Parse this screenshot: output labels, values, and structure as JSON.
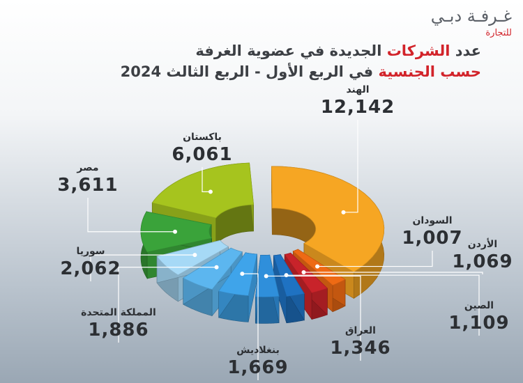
{
  "logo": {
    "main": "غـرفـة دبـي",
    "sub": "للتجارة"
  },
  "title": {
    "line1_pre": "عدد ",
    "line1_red": "الشركات",
    "line1_post": " الجديدة في عضوية الغرفة",
    "line2_red": "حسب الجنسية",
    "line2_post": " في الربع الأول - الربع الثالث 2024"
  },
  "chart_data": {
    "type": "pie",
    "style": "3d-donut, exploded",
    "slices": [
      {
        "name": "الهند",
        "value": 12142,
        "value_label": "12,142",
        "color": "#f6a623"
      },
      {
        "name": "السودان",
        "value": 1007,
        "value_label": "1,007",
        "color": "#ee6a14"
      },
      {
        "name": "الأردن",
        "value": 1069,
        "value_label": "1,069",
        "color": "#c8232a"
      },
      {
        "name": "الصين",
        "value": 1109,
        "value_label": "1,109",
        "color": "#1f72c2"
      },
      {
        "name": "العراق",
        "value": 1346,
        "value_label": "1,346",
        "color": "#2f8fdb"
      },
      {
        "name": "بنغلاديش",
        "value": 1669,
        "value_label": "1,669",
        "color": "#3fa4ea"
      },
      {
        "name": "المملكة المتحدة",
        "value": 1886,
        "value_label": "1,886",
        "color": "#5cb6ef"
      },
      {
        "name": "سوريا",
        "value": 2062,
        "value_label": "2,062",
        "color": "#a6d9f6"
      },
      {
        "name": "مصر",
        "value": 3611,
        "value_label": "3,611",
        "color": "#3aa33a"
      },
      {
        "name": "باكستان",
        "value": 6061,
        "value_label": "6,061",
        "color": "#a6c41e"
      }
    ]
  }
}
